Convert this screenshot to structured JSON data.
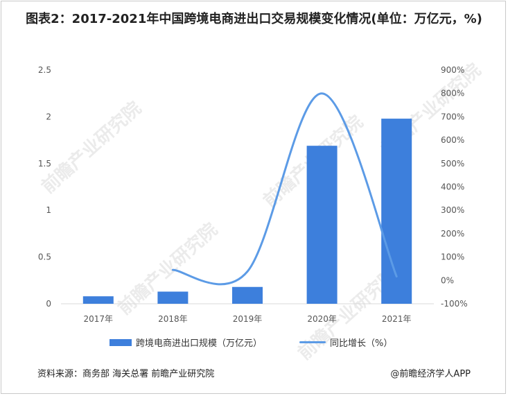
{
  "title": "图表2：2017-2021年中国跨境电商进出口交易规模变化情况(单位：万亿元，%)",
  "colors": {
    "bar": "#3d7fdc",
    "line": "#5c9be6",
    "axis": "#d9d9d9",
    "text": "#555555"
  },
  "chart_data": {
    "type": "bar",
    "categories": [
      "2017年",
      "2018年",
      "2019年",
      "2020年",
      "2021年"
    ],
    "series": [
      {
        "name": "跨境电商进出口规模（万亿元）",
        "type": "bar",
        "axis": "left",
        "values": [
          0.08,
          0.13,
          0.18,
          1.69,
          1.98
        ]
      },
      {
        "name": "同比增长（%）",
        "type": "line",
        "axis": "right",
        "values": [
          null,
          45,
          38,
          800,
          17
        ]
      }
    ],
    "y_left": {
      "ylim": [
        0,
        2.5
      ],
      "ticks": [
        "0",
        "0.5",
        "1",
        "1.5",
        "2",
        "2.5"
      ]
    },
    "y_right": {
      "ylim": [
        -100,
        900
      ],
      "ticks": [
        "-100%",
        "0%",
        "100%",
        "200%",
        "300%",
        "400%",
        "500%",
        "600%",
        "700%",
        "800%",
        "900%"
      ]
    },
    "grid": false,
    "legend": "bottom"
  },
  "footer": {
    "source": "资料来源：商务部 海关总署 前瞻产业研究院",
    "brand": "@前瞻经济学人APP"
  },
  "watermark": {
    "text": "前瞻产业研究院"
  }
}
